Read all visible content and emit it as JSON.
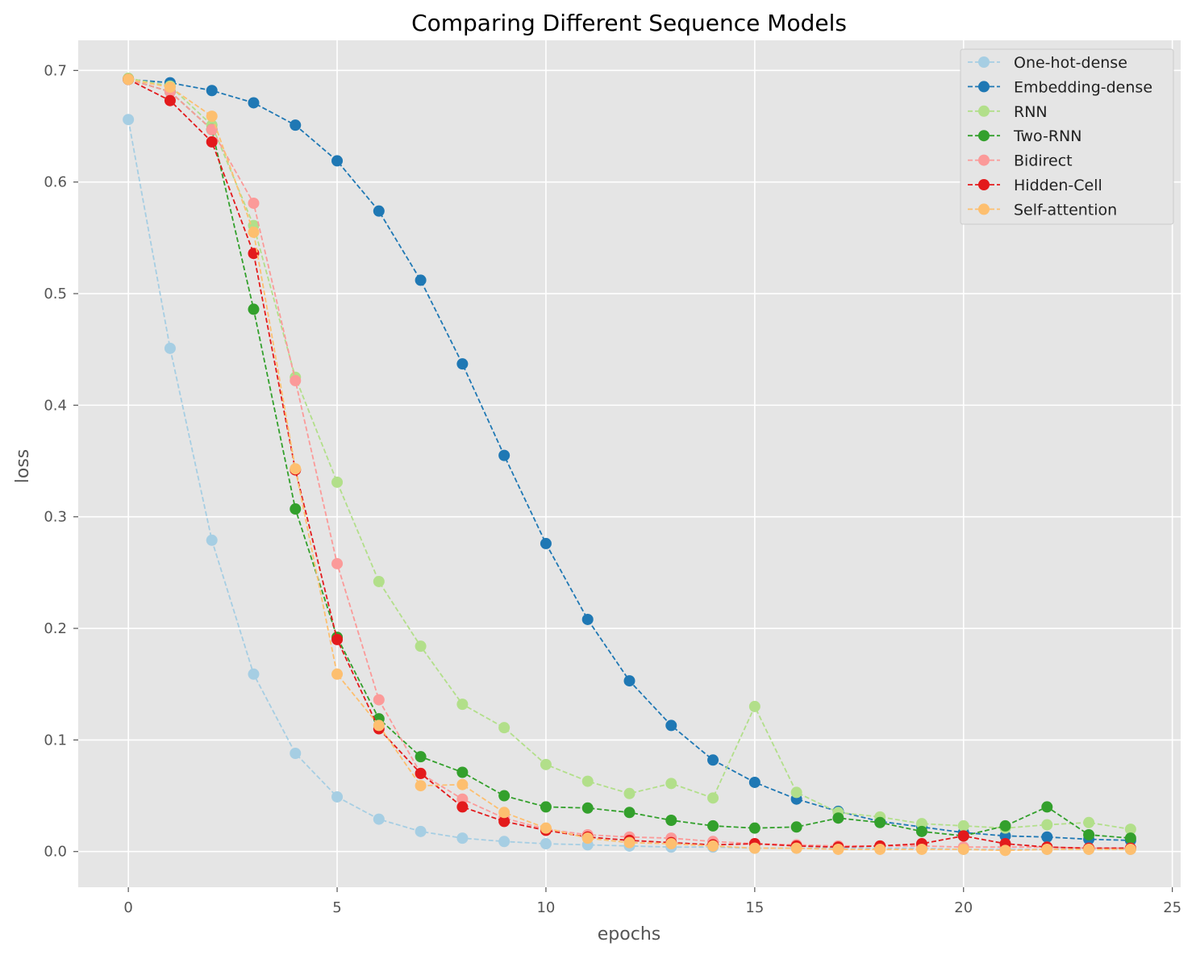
{
  "chart_data": {
    "type": "line",
    "title": "Comparing Different Sequence Models",
    "xlabel": "epochs",
    "ylabel": "loss",
    "xlim": [
      -1.2,
      25.2
    ],
    "ylim": [
      -0.032,
      0.727
    ],
    "xticks": [
      0,
      5,
      10,
      15,
      20,
      25
    ],
    "yticks": [
      0.0,
      0.1,
      0.2,
      0.3,
      0.4,
      0.5,
      0.6,
      0.7
    ],
    "ytick_labels": [
      "0.0",
      "0.1",
      "0.2",
      "0.3",
      "0.4",
      "0.5",
      "0.6",
      "0.7"
    ],
    "grid": true,
    "legend_position": "top-right",
    "style": {
      "background": "#E5E5E5",
      "grid_color": "#FFFFFF",
      "line_style": "dashed",
      "marker": "circle"
    },
    "x": [
      0,
      1,
      2,
      3,
      4,
      5,
      6,
      7,
      8,
      9,
      10,
      11,
      12,
      13,
      14,
      15,
      16,
      17,
      18,
      19,
      20,
      21,
      22,
      23,
      24
    ],
    "series": [
      {
        "name": "One-hot-dense",
        "color": "#A6CEE3",
        "values": [
          0.656,
          0.451,
          0.279,
          0.159,
          0.088,
          0.049,
          0.029,
          0.018,
          0.012,
          0.009,
          0.007,
          0.006,
          0.005,
          0.004,
          0.004,
          0.003,
          0.003,
          0.003,
          0.003,
          0.003,
          0.002,
          0.002,
          0.002,
          0.002,
          0.002
        ]
      },
      {
        "name": "Embedding-dense",
        "color": "#1F78B4",
        "values": [
          0.692,
          0.689,
          0.682,
          0.671,
          0.651,
          0.619,
          0.574,
          0.512,
          0.437,
          0.355,
          0.276,
          0.208,
          0.153,
          0.113,
          0.082,
          0.062,
          0.047,
          0.036,
          0.027,
          0.022,
          0.017,
          0.014,
          0.013,
          0.011,
          0.01
        ]
      },
      {
        "name": "RNN",
        "color": "#B2DF8A",
        "values": [
          0.693,
          0.686,
          0.651,
          0.561,
          0.425,
          0.331,
          0.242,
          0.184,
          0.132,
          0.111,
          0.078,
          0.063,
          0.052,
          0.061,
          0.048,
          0.13,
          0.053,
          0.035,
          0.031,
          0.025,
          0.023,
          0.021,
          0.024,
          0.026,
          0.02
        ]
      },
      {
        "name": "Two-RNN",
        "color": "#33A02C",
        "values": [
          0.692,
          0.681,
          0.647,
          0.486,
          0.307,
          0.192,
          0.119,
          0.085,
          0.071,
          0.05,
          0.04,
          0.039,
          0.035,
          0.028,
          0.023,
          0.021,
          0.022,
          0.03,
          0.026,
          0.018,
          0.014,
          0.023,
          0.04,
          0.015,
          0.012
        ]
      },
      {
        "name": "Bidirect",
        "color": "#FB9A99",
        "values": [
          0.692,
          0.681,
          0.647,
          0.581,
          0.422,
          0.258,
          0.136,
          0.07,
          0.047,
          0.03,
          0.02,
          0.015,
          0.013,
          0.012,
          0.009,
          0.007,
          0.006,
          0.005,
          0.005,
          0.005,
          0.004,
          0.004,
          0.004,
          0.003,
          0.003
        ]
      },
      {
        "name": "Hidden-Cell",
        "color": "#E31A1C",
        "values": [
          0.692,
          0.673,
          0.636,
          0.536,
          0.342,
          0.19,
          0.11,
          0.07,
          0.04,
          0.027,
          0.019,
          0.013,
          0.01,
          0.008,
          0.006,
          0.007,
          0.005,
          0.004,
          0.005,
          0.007,
          0.014,
          0.007,
          0.004,
          0.003,
          0.003
        ]
      },
      {
        "name": "Self-attention",
        "color": "#FDBF6F",
        "values": [
          0.692,
          0.685,
          0.659,
          0.555,
          0.343,
          0.159,
          0.113,
          0.059,
          0.06,
          0.035,
          0.021,
          0.012,
          0.008,
          0.007,
          0.005,
          0.003,
          0.003,
          0.002,
          0.002,
          0.002,
          0.002,
          0.001,
          0.002,
          0.002,
          0.002
        ]
      }
    ]
  }
}
